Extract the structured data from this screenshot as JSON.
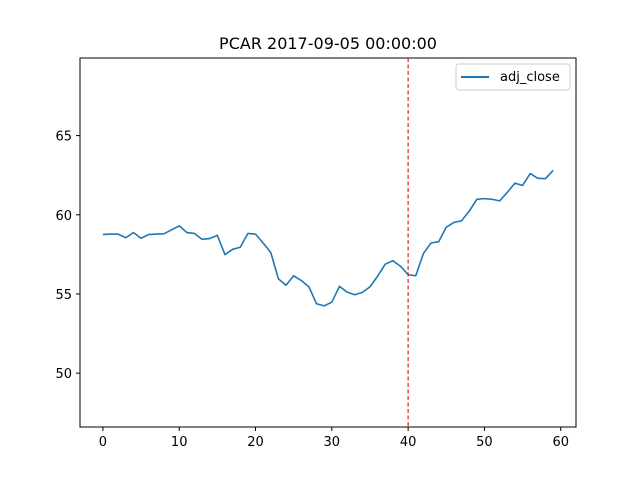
{
  "chart_data": {
    "type": "line",
    "title": "PCAR 2017-09-05 00:00:00",
    "xlabel": "",
    "ylabel": "",
    "xlim": [
      -3,
      62
    ],
    "ylim": [
      46.6,
      69.9
    ],
    "xticks": [
      0,
      10,
      20,
      30,
      40,
      50,
      60
    ],
    "yticks": [
      50,
      55,
      60,
      65
    ],
    "grid": false,
    "legend_position": "top-right",
    "series": [
      {
        "name": "adj_close",
        "color": "#1f77b4",
        "x": [
          0,
          1,
          2,
          3,
          4,
          5,
          6,
          7,
          8,
          9,
          10,
          11,
          12,
          13,
          14,
          15,
          16,
          17,
          18,
          19,
          20,
          21,
          22,
          23,
          24,
          25,
          26,
          27,
          28,
          29,
          30,
          31,
          32,
          33,
          34,
          35,
          36,
          37,
          38,
          39,
          40,
          41,
          42,
          43,
          44,
          45,
          46,
          47,
          48,
          49,
          50,
          51,
          52,
          53,
          54,
          55,
          56,
          57,
          58,
          59
        ],
        "values": [
          58.75,
          58.78,
          58.78,
          58.55,
          58.88,
          58.52,
          58.75,
          58.78,
          58.8,
          59.05,
          59.3,
          58.88,
          58.82,
          58.45,
          58.5,
          58.7,
          57.48,
          57.82,
          57.95,
          58.82,
          58.78,
          58.22,
          57.62,
          55.95,
          55.55,
          56.15,
          55.85,
          55.45,
          54.38,
          54.25,
          54.48,
          55.48,
          55.12,
          54.95,
          55.1,
          55.45,
          56.12,
          56.88,
          57.1,
          56.75,
          56.22,
          56.15,
          57.55,
          58.22,
          58.3,
          59.22,
          59.52,
          59.62,
          60.22,
          60.98,
          61.02,
          60.98,
          60.88,
          61.42,
          62.0,
          61.85,
          62.6,
          62.3,
          62.28,
          62.8
        ]
      }
    ],
    "annotations": [
      {
        "type": "vline",
        "x": 40,
        "color": "#d62728",
        "style": "dashed"
      }
    ]
  }
}
